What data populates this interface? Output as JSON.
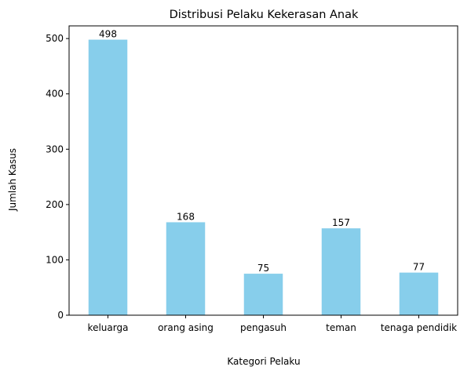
{
  "chart_data": {
    "type": "bar",
    "title": "Distribusi Pelaku Kekerasan Anak",
    "xlabel": "Kategori Pelaku",
    "ylabel": "Jumlah Kasus",
    "categories": [
      "keluarga",
      "orang asing",
      "pengasuh",
      "teman",
      "tenaga pendidik"
    ],
    "values": [
      498,
      168,
      75,
      157,
      77
    ],
    "data_labels": [
      "498",
      "168",
      "75",
      "157",
      "77"
    ],
    "ylim": [
      0,
      522.9
    ],
    "yticks": [
      0,
      100,
      200,
      300,
      400,
      500
    ],
    "ytick_labels": [
      "0",
      "100",
      "200",
      "300",
      "400",
      "500"
    ],
    "grid": false,
    "bar_color": "#87ceeb"
  }
}
